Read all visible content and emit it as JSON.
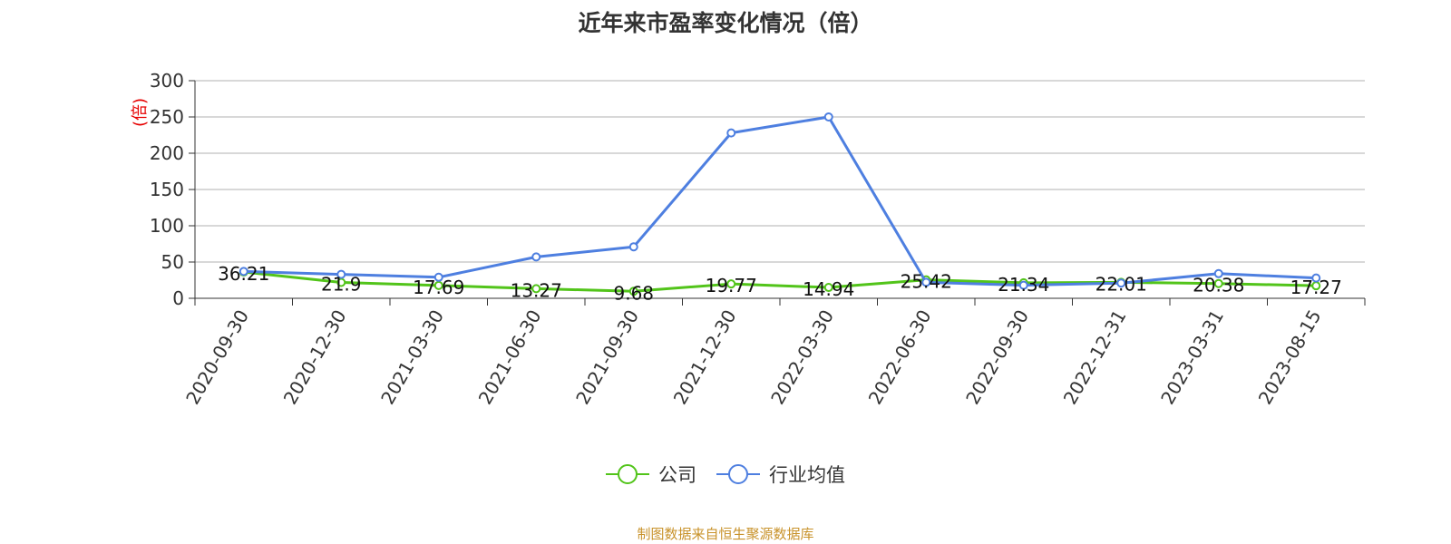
{
  "title": "近年来市盈率变化情况（倍）",
  "source_note": "制图数据来自恒生聚源数据库",
  "colors": {
    "company": "#52c41a",
    "industry": "#4e7fe0",
    "grid": "#cccccc",
    "axis": "#333333",
    "unit": "#e60000",
    "source": "#c8922a"
  },
  "legend": [
    {
      "label": "公司",
      "color": "#52c41a"
    },
    {
      "label": "行业均值",
      "color": "#4e7fe0"
    }
  ],
  "chart_data": {
    "type": "line",
    "title": "近年来市盈率变化情况（倍）",
    "ylabel": "(倍)",
    "ylim": [
      0,
      300
    ],
    "yticks": [
      0,
      50,
      100,
      150,
      200,
      250,
      300
    ],
    "categories": [
      "2020-09-30",
      "2020-12-30",
      "2021-03-30",
      "2021-06-30",
      "2021-09-30",
      "2021-12-30",
      "2022-03-30",
      "2022-06-30",
      "2022-09-30",
      "2022-12-31",
      "2023-03-31",
      "2023-08-15"
    ],
    "grid": true,
    "legend_position": "bottom",
    "series": [
      {
        "name": "公司",
        "values": [
          36.21,
          21.9,
          17.69,
          13.27,
          9.68,
          19.77,
          14.94,
          25.42,
          21.34,
          22.01,
          20.38,
          17.27
        ],
        "labels": true
      },
      {
        "name": "行业均值",
        "values": [
          37,
          33,
          29,
          57,
          71,
          228,
          250,
          22,
          18,
          21,
          34,
          28
        ],
        "labels": false
      }
    ]
  }
}
